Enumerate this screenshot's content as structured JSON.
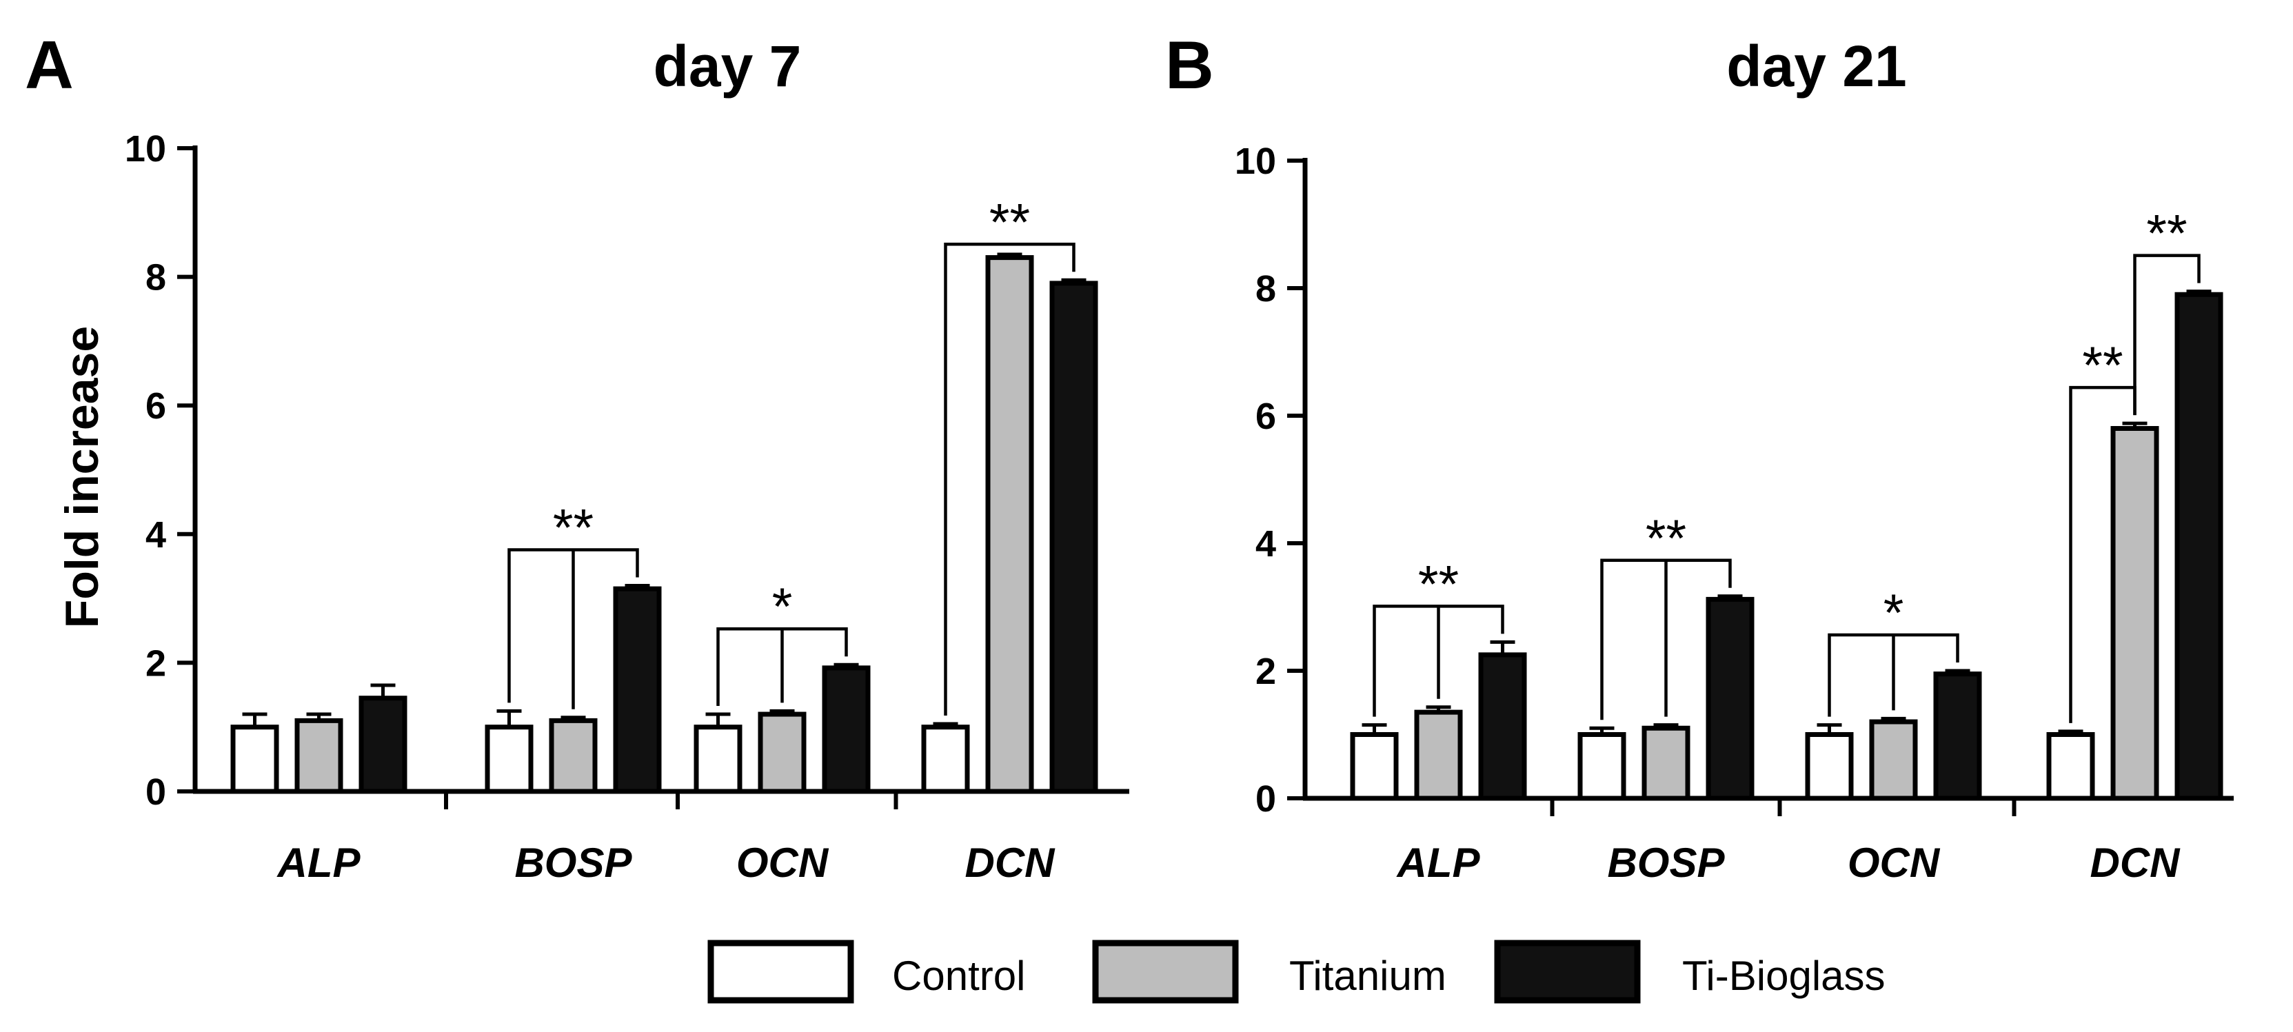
{
  "panel_a": {
    "letter": "A",
    "title": "day 7"
  },
  "panel_b": {
    "letter": "B",
    "title": "day 21"
  },
  "legend": {
    "items": [
      {
        "label": "Control",
        "color": "#ffffff"
      },
      {
        "label": "Titanium",
        "color": "#bdbdbd"
      },
      {
        "label": "Ti-Bioglass",
        "color": "#111111"
      }
    ]
  },
  "chart_data": [
    {
      "type": "bar",
      "title": "day 7",
      "xlabel": "",
      "ylabel": "Fold increase",
      "ylim": [
        0,
        10
      ],
      "yticks": [
        "0",
        "2",
        "4",
        "6",
        "8",
        "10"
      ],
      "categories": [
        "ALP",
        "BOSP",
        "OCN",
        "DCN"
      ],
      "series": [
        {
          "name": "Control",
          "values": [
            1.0,
            1.0,
            1.0,
            1.0
          ],
          "errors": [
            0.2,
            0.25,
            0.2,
            0.05
          ]
        },
        {
          "name": "Titanium",
          "values": [
            1.1,
            1.1,
            1.2,
            8.3
          ],
          "errors": [
            0.1,
            0.05,
            0.05,
            0.05
          ]
        },
        {
          "name": "Ti-Bioglass",
          "values": [
            1.45,
            3.15,
            1.92,
            7.9
          ],
          "errors": [
            0.2,
            0.05,
            0.05,
            0.05
          ]
        }
      ],
      "annotations": [
        {
          "category": "BOSP",
          "label": "**",
          "bracket_from": [
            "Control",
            "Titanium"
          ],
          "bracket_to": "Ti-Bioglass"
        },
        {
          "category": "OCN",
          "label": "*",
          "bracket_from": [
            "Control",
            "Titanium"
          ],
          "bracket_to": "Ti-Bioglass"
        },
        {
          "category": "DCN",
          "label": "**",
          "bracket_from": [
            "Control"
          ],
          "bracket_to": "Ti-Bioglass"
        }
      ]
    },
    {
      "type": "bar",
      "title": "day 21",
      "xlabel": "",
      "ylabel": "",
      "ylim": [
        0,
        10
      ],
      "yticks": [
        "0",
        "2",
        "4",
        "6",
        "8",
        "10"
      ],
      "categories": [
        "ALP",
        "BOSP",
        "OCN",
        "DCN"
      ],
      "series": [
        {
          "name": "Control",
          "values": [
            1.0,
            1.0,
            1.0,
            1.0
          ],
          "errors": [
            0.15,
            0.1,
            0.15,
            0.05
          ]
        },
        {
          "name": "Titanium",
          "values": [
            1.35,
            1.1,
            1.2,
            5.8
          ],
          "errors": [
            0.08,
            0.05,
            0.05,
            0.08
          ]
        },
        {
          "name": "Ti-Bioglass",
          "values": [
            2.25,
            3.12,
            1.95,
            7.9
          ],
          "errors": [
            0.2,
            0.05,
            0.05,
            0.05
          ]
        }
      ],
      "annotations": [
        {
          "category": "ALP",
          "label": "**",
          "bracket_from": [
            "Control",
            "Titanium"
          ],
          "bracket_to": "Ti-Bioglass"
        },
        {
          "category": "BOSP",
          "label": "**",
          "bracket_from": [
            "Control",
            "Titanium"
          ],
          "bracket_to": "Ti-Bioglass"
        },
        {
          "category": "OCN",
          "label": "*",
          "bracket_from": [
            "Control",
            "Titanium"
          ],
          "bracket_to": "Ti-Bioglass"
        },
        {
          "category": "DCN",
          "label": "**",
          "bracket_from": [
            "Control"
          ],
          "bracket_to": "Titanium"
        },
        {
          "category": "DCN",
          "label": "**",
          "bracket_from": [
            "Titanium"
          ],
          "bracket_to": "Ti-Bioglass"
        }
      ]
    }
  ]
}
